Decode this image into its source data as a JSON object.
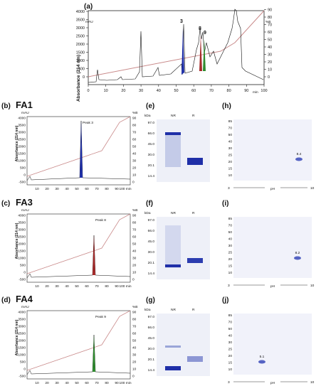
{
  "panel_a": {
    "label": "(a)",
    "y_unit": "mAU",
    "y2_unit": "%B",
    "y_label": "Absorbance (214 nm)",
    "x_unit": "min",
    "y_ticks": [
      "0",
      "500",
      "1000",
      "1500",
      "2000",
      "2500",
      "3000",
      "3500",
      "4000"
    ],
    "y2_ticks": [
      "0",
      "10",
      "20",
      "30",
      "40",
      "50",
      "60",
      "70",
      "80",
      "90"
    ],
    "x_ticks": [
      "0",
      "10",
      "20",
      "30",
      "40",
      "50",
      "60",
      "70",
      "80",
      "90",
      "100"
    ],
    "peaks": [
      "3",
      "8",
      "9"
    ]
  },
  "panels_chrom": [
    {
      "label": "(b)",
      "title": "FA1",
      "peak": "Peak 3",
      "color": "#1f2fa8"
    },
    {
      "label": "(c)",
      "title": "FA3",
      "peak": "Peak 8",
      "color": "#a52a2a"
    },
    {
      "label": "(d)",
      "title": "FA4",
      "peak": "Peak 9",
      "color": "#2e8b2e"
    }
  ],
  "chrom_axes": {
    "y_unit": "mAU",
    "y2_unit": "%B",
    "y_label": "Absorbance (214 nm)",
    "x_unit": "100 min",
    "y_ticks": [
      "-500",
      "0",
      "500",
      "1000",
      "1500",
      "2000",
      "2500",
      "3000",
      "3500",
      "4000"
    ],
    "y2_ticks": [
      "0",
      "10",
      "20",
      "30",
      "40",
      "50",
      "60",
      "70",
      "80",
      "90"
    ],
    "x_ticks": [
      "10",
      "20",
      "30",
      "40",
      "50",
      "60",
      "70",
      "80",
      "90"
    ]
  },
  "panels_gel": [
    {
      "label": "(e)",
      "kda": "kDa",
      "lanes": [
        "NR",
        "R"
      ],
      "markers": [
        "97.0",
        "66.0",
        "45.0",
        "30.0",
        "20.1",
        "14.4"
      ]
    },
    {
      "label": "(f)",
      "kda": "kDa",
      "lanes": [
        "NR",
        "R"
      ],
      "markers": [
        "97.0",
        "66.0",
        "45.0",
        "30.0",
        "20.1",
        "14.4"
      ]
    },
    {
      "label": "(g)",
      "kda": "kDa",
      "lanes": [
        "NR",
        "R"
      ],
      "markers": [
        "97.0",
        "66.0",
        "45.0",
        "30.0",
        "20.1",
        "14.4"
      ]
    }
  ],
  "panels_2d": [
    {
      "label": "(h)",
      "spot": "8.4"
    },
    {
      "label": "(i)",
      "spot": "8.2"
    },
    {
      "label": "(j)",
      "spot": "5.1"
    }
  ],
  "twod_axes": {
    "y_ticks": [
      "85",
      "70",
      "50",
      "40",
      "30",
      "25",
      "20",
      "15",
      "10"
    ],
    "ph_left": "3",
    "ph_right": "10",
    "ph_label": "pH"
  }
}
